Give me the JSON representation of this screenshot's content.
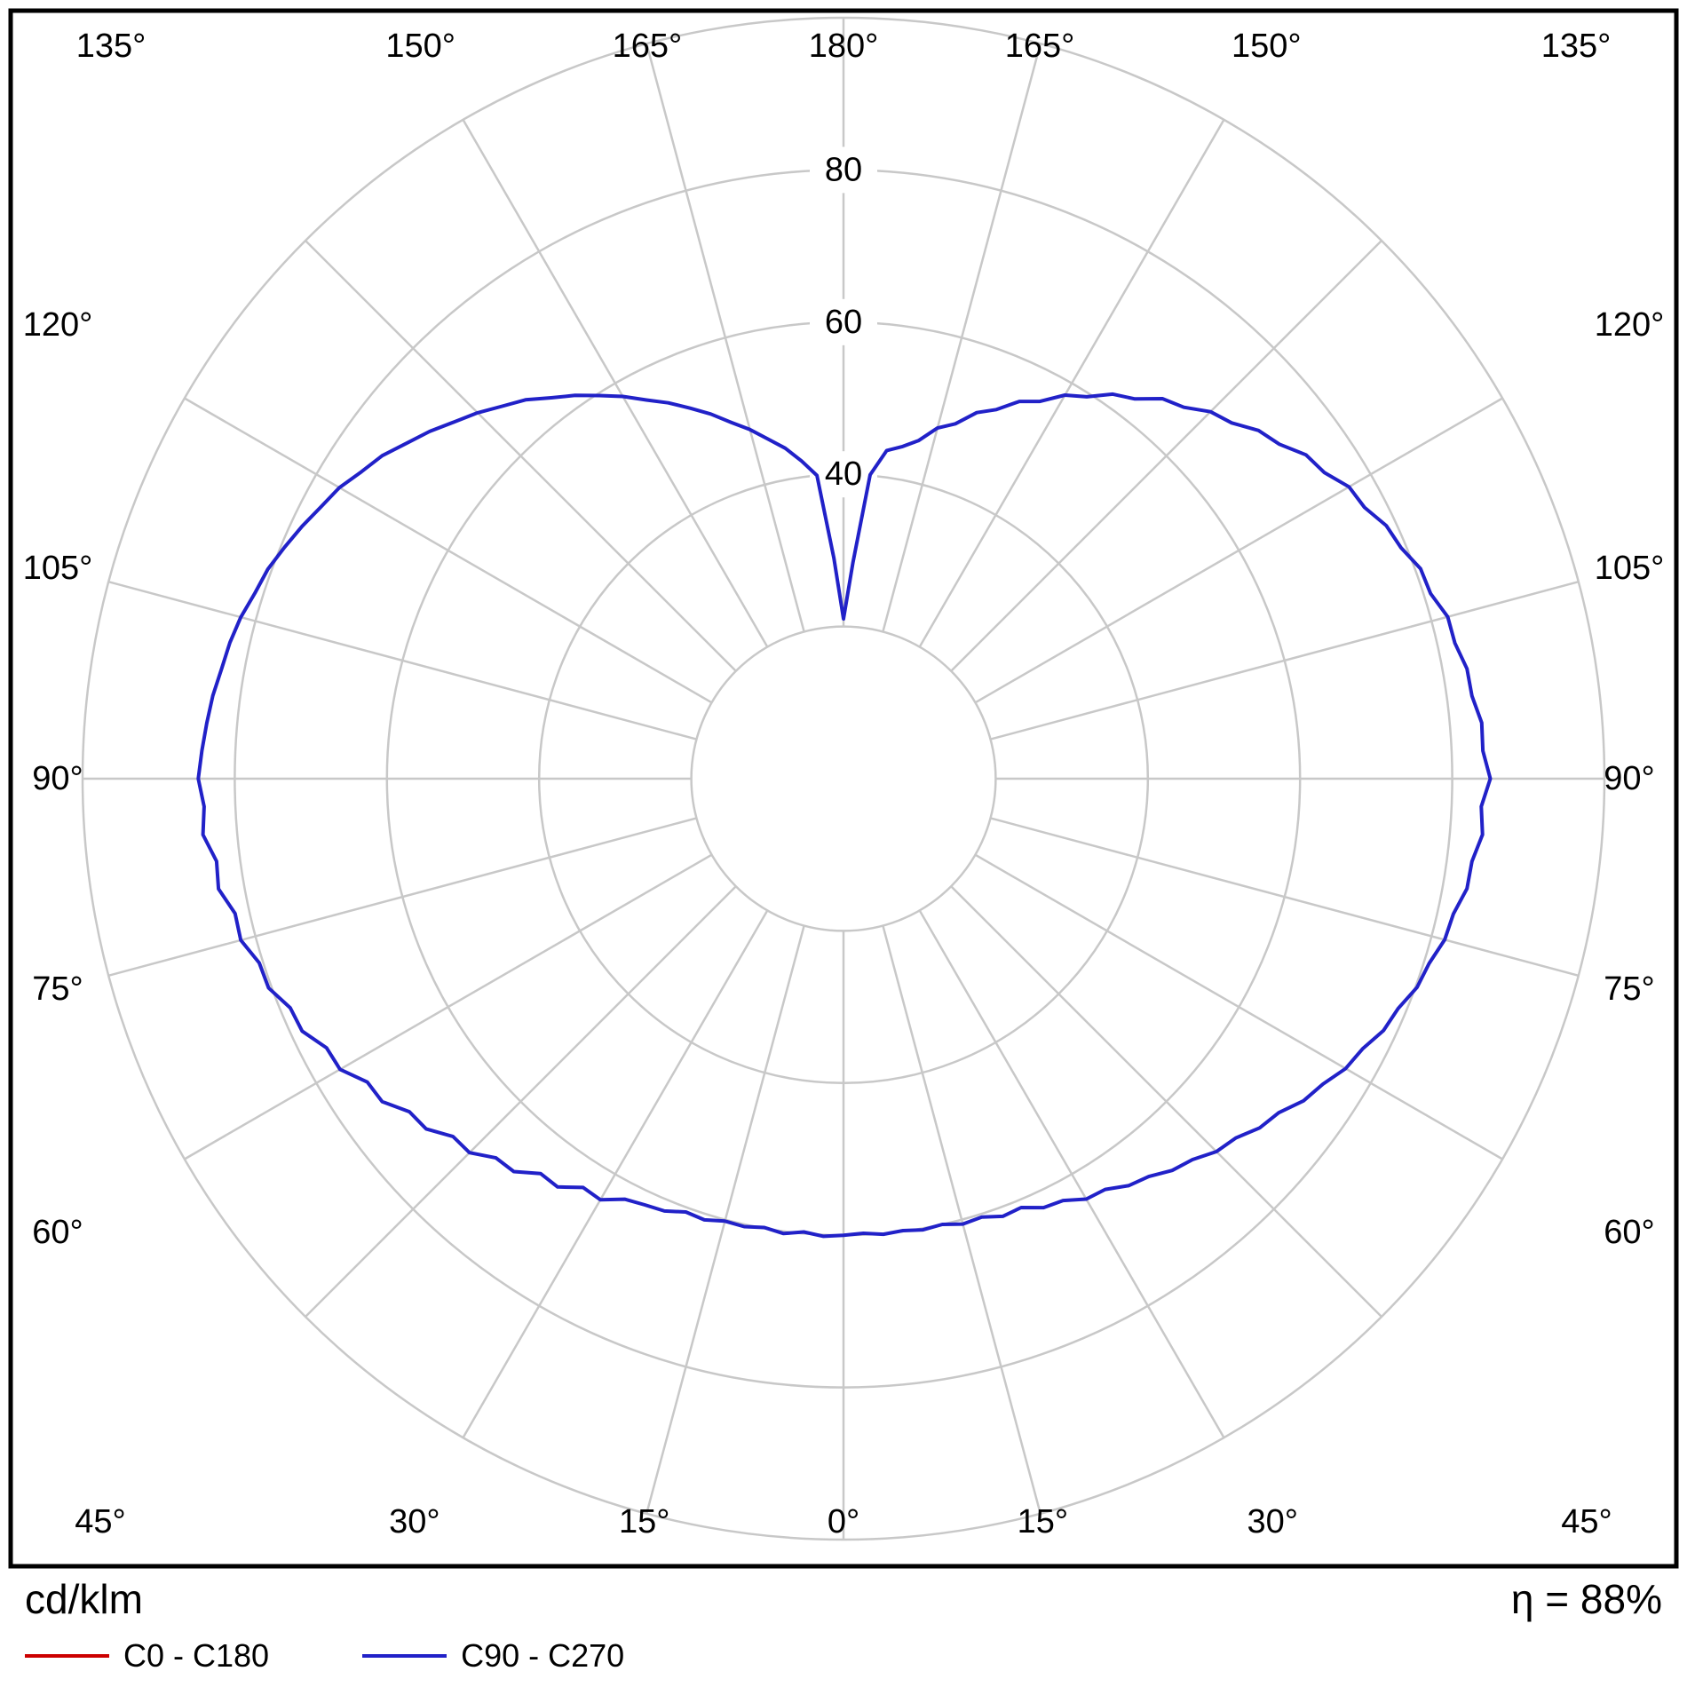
{
  "chart_data": {
    "type": "polar",
    "subtype": "luminous-intensity-distribution",
    "unit": "cd/klm",
    "efficiency_percent": 88,
    "rmax": 100,
    "grid_circle_radii": [
      20,
      40,
      60,
      80,
      100
    ],
    "spoke_step_deg": 15,
    "spoke_inner_radius": 20,
    "grid_color": "#c8c8c8",
    "frame_color": "#000000",
    "radius_ticks": [
      {
        "r": 40,
        "label": "40"
      },
      {
        "r": 60,
        "label": "60"
      },
      {
        "r": 80,
        "label": "80"
      }
    ],
    "angle_ticks": [
      {
        "deg": 0,
        "label": "0°"
      },
      {
        "deg": 15,
        "label": "15°"
      },
      {
        "deg": 30,
        "label": "30°"
      },
      {
        "deg": 45,
        "label": "45°"
      },
      {
        "deg": 60,
        "label": "60°"
      },
      {
        "deg": 75,
        "label": "75°"
      },
      {
        "deg": 90,
        "label": "90°"
      },
      {
        "deg": 105,
        "label": "105°"
      },
      {
        "deg": 120,
        "label": "120°"
      },
      {
        "deg": 135,
        "label": "135°"
      },
      {
        "deg": 150,
        "label": "150°"
      },
      {
        "deg": 165,
        "label": "165°"
      },
      {
        "deg": 180,
        "label": "180°"
      }
    ],
    "series": [
      {
        "name": "C0 - C180",
        "color": "#cc0000",
        "drawn": false
      },
      {
        "name": "C90 - C270",
        "color": "#2121c8",
        "drawn": true,
        "gamma_start_deg": 0,
        "gamma_step_deg": 2.5,
        "right_values": [
          60.0,
          59.8,
          60.1,
          59.9,
          60.2,
          60.0,
          60.6,
          60.4,
          61.2,
          61.0,
          62.2,
          62.5,
          63.8,
          64.0,
          65.3,
          65.9,
          67.2,
          67.9,
          69.3,
          69.9,
          71.4,
          72.1,
          73.8,
          74.7,
          76.2,
          76.9,
          78.3,
          78.9,
          80.2,
          80.7,
          81.8,
          82.1,
          83.2,
          83.3,
          84.3,
          83.9,
          85.0,
          84.1,
          84.2,
          83.3,
          83.2,
          82.3,
          82.2,
          80.9,
          80.7,
          79.3,
          78.7,
          77.2,
          76.7,
          74.9,
          74.2,
          72.2,
          71.2,
          69.2,
          68.2,
          66.2,
          65.2,
          62.9,
          61.7,
          59.5,
          58.2,
          55.9,
          54.7,
          52.5,
          51.2,
          48.9,
          47.7,
          45.5,
          44.3,
          43.5,
          40.1,
          28.4,
          21.0
        ],
        "left_values": [
          60.0,
          60.2,
          59.8,
          60.3,
          59.9,
          60.3,
          60.2,
          60.8,
          60.6,
          61.5,
          61.8,
          62.3,
          63.9,
          63.7,
          65.5,
          65.4,
          67.4,
          67.6,
          69.5,
          69.6,
          71.6,
          71.9,
          74.0,
          74.2,
          76.4,
          76.6,
          78.5,
          78.7,
          80.4,
          80.5,
          82.0,
          81.9,
          83.4,
          83.1,
          84.5,
          84.1,
          84.8,
          84.4,
          84.0,
          83.6,
          83.0,
          82.6,
          82.0,
          81.1,
          80.5,
          79.5,
          78.5,
          77.4,
          76.5,
          75.1,
          74.0,
          72.4,
          71.0,
          69.4,
          68.0,
          66.4,
          65.0,
          63.1,
          61.5,
          59.7,
          58.0,
          56.1,
          54.5,
          52.7,
          51.0,
          49.1,
          47.5,
          45.7,
          44.1,
          42.1,
          40.0,
          29.0,
          21.0
        ]
      }
    ]
  },
  "footer": {
    "unit_label": "cd/klm",
    "efficiency_label": "η = 88%",
    "legend": [
      {
        "label": "C0 - C180",
        "color": "#cc0000"
      },
      {
        "label": "C90 - C270",
        "color": "#2121c8"
      }
    ]
  }
}
